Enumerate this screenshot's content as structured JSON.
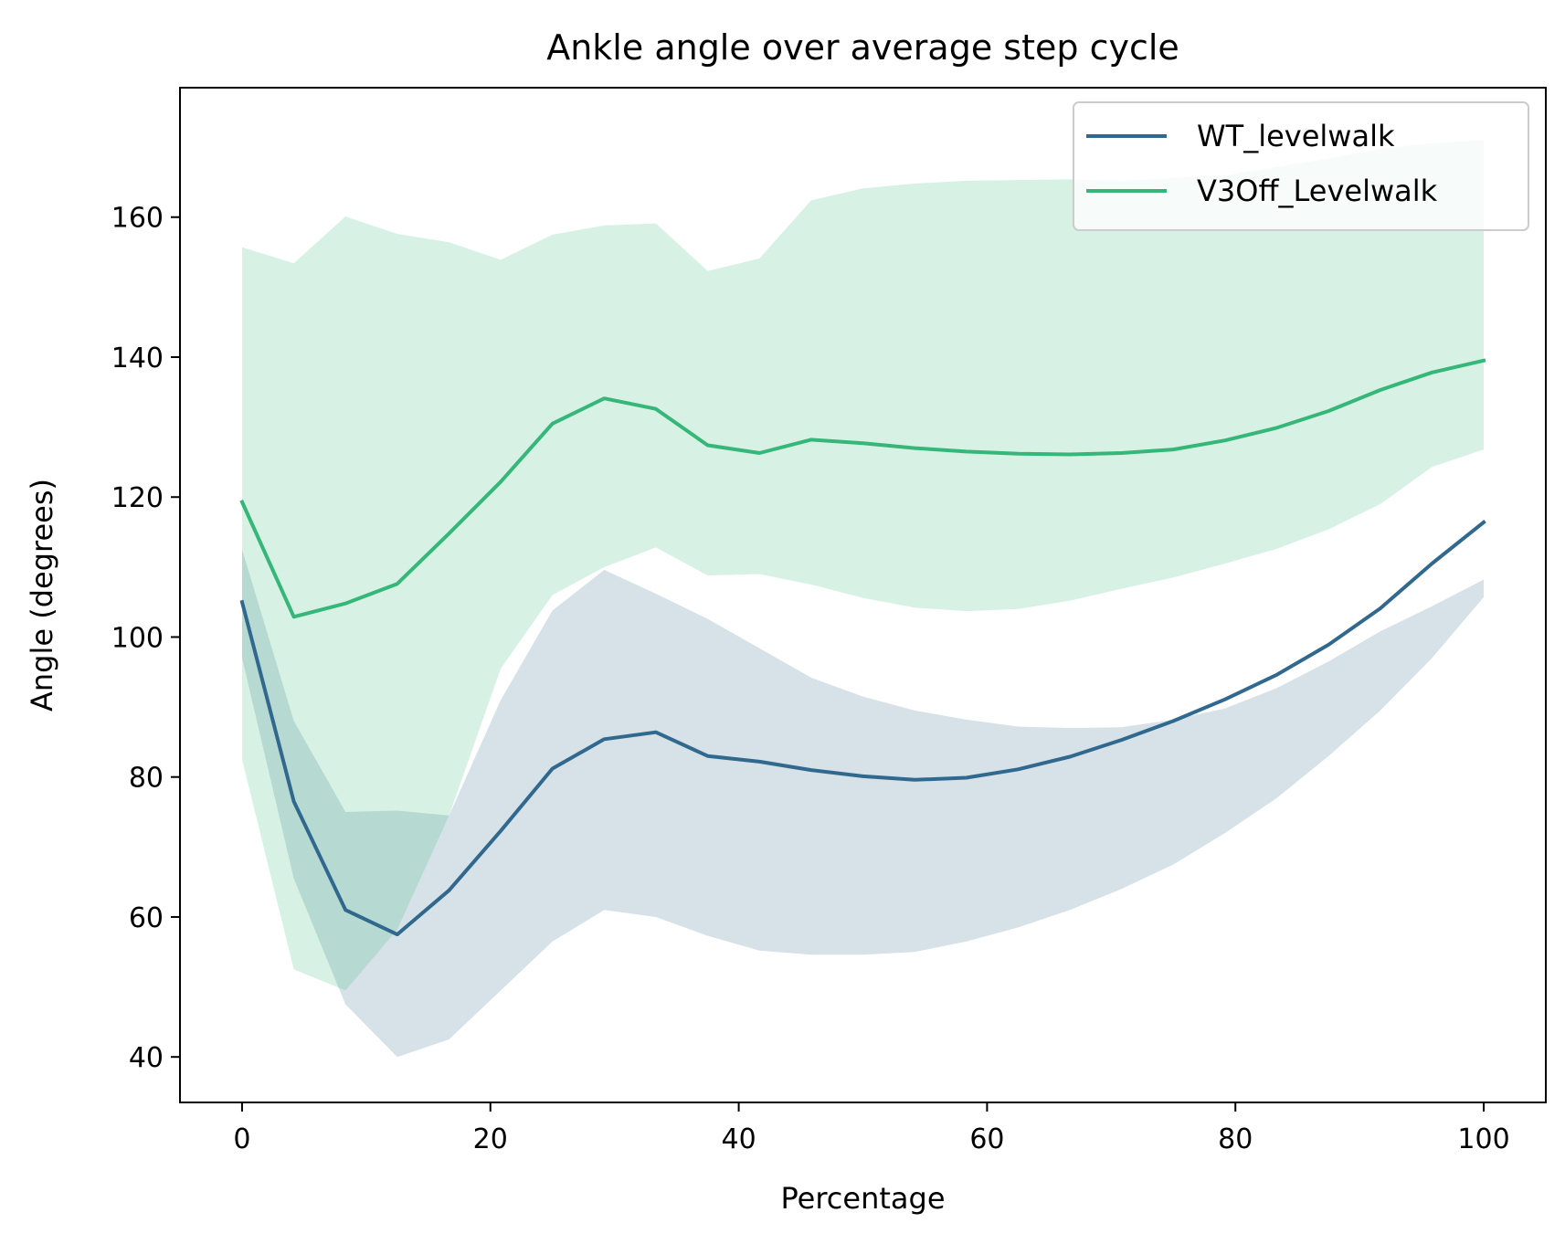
{
  "chart_data": {
    "type": "line",
    "title": "Ankle angle over average step cycle",
    "xlabel": "Percentage",
    "ylabel": "Angle (degrees)",
    "xlim": [
      -5,
      105
    ],
    "ylim": [
      33.5,
      178.5
    ],
    "xticks": [
      0,
      20,
      40,
      60,
      80,
      100
    ],
    "yticks": [
      40,
      60,
      80,
      100,
      120,
      140,
      160
    ],
    "grid": false,
    "legend_position": "top-right",
    "x": [
      0,
      4.17,
      8.33,
      12.5,
      16.67,
      20.83,
      25,
      29.17,
      33.33,
      37.5,
      41.67,
      45.83,
      50,
      54.17,
      58.33,
      62.5,
      66.67,
      70.83,
      75,
      79.17,
      83.33,
      87.5,
      91.67,
      95.83,
      100
    ],
    "series": [
      {
        "name": "WT_levelwalk",
        "color": "#31688e",
        "band_opacity": 0.2,
        "values": [
          105.0,
          76.5,
          61.0,
          57.5,
          63.8,
          72.3,
          81.2,
          85.4,
          86.4,
          83.0,
          82.2,
          81.0,
          80.1,
          79.6,
          79.9,
          81.1,
          82.9,
          85.3,
          88.0,
          91.1,
          94.6,
          98.9,
          104.1,
          110.5,
          116.4
        ],
        "lower": [
          97.0,
          65.5,
          47.5,
          40.0,
          42.5,
          49.5,
          56.5,
          61.0,
          60.0,
          57.3,
          55.2,
          54.6,
          54.6,
          55.0,
          56.5,
          58.5,
          61.0,
          64.0,
          67.5,
          72.0,
          77.0,
          83.0,
          89.5,
          97.0,
          105.7
        ],
        "upper": [
          112.5,
          88.0,
          75.0,
          75.2,
          74.5,
          91.0,
          103.8,
          109.6,
          106.2,
          102.6,
          98.4,
          94.2,
          91.5,
          89.5,
          88.2,
          87.2,
          87.0,
          87.1,
          88.2,
          89.8,
          92.7,
          96.5,
          100.8,
          104.4,
          108.2
        ]
      },
      {
        "name": "V3Off_Levelwalk",
        "color": "#35b779",
        "band_opacity": 0.2,
        "values": [
          119.3,
          102.9,
          104.8,
          107.6,
          114.8,
          122.2,
          130.5,
          134.1,
          132.6,
          127.4,
          126.3,
          128.2,
          127.7,
          127.0,
          126.5,
          126.2,
          126.1,
          126.3,
          126.8,
          128.1,
          129.9,
          132.3,
          135.3,
          137.8,
          139.5
        ],
        "lower": [
          82.5,
          52.5,
          49.5,
          58.2,
          74.5,
          95.5,
          106.0,
          110.0,
          112.8,
          108.8,
          109.0,
          107.5,
          105.6,
          104.2,
          103.7,
          104.0,
          105.2,
          106.9,
          108.5,
          110.5,
          112.6,
          115.4,
          119.0,
          124.3,
          126.8
        ],
        "upper": [
          155.7,
          153.4,
          160.1,
          157.6,
          156.4,
          153.9,
          157.5,
          158.8,
          159.1,
          152.3,
          154.1,
          162.4,
          164.1,
          164.8,
          165.2,
          165.3,
          165.4,
          165.2,
          165.6,
          166.0,
          167.2,
          168.4,
          169.8,
          170.6,
          171.0
        ]
      }
    ]
  }
}
